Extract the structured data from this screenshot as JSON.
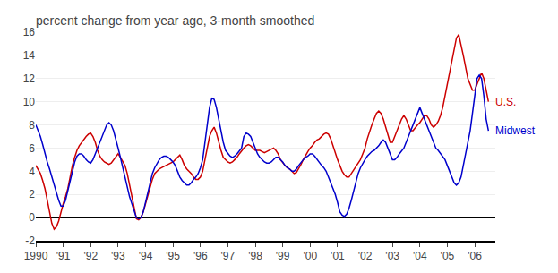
{
  "chart_data": {
    "type": "line",
    "title": "percent change from year ago, 3-month smoothed",
    "x": [
      1990.0,
      1990.083,
      1990.167,
      1990.25,
      1990.333,
      1990.417,
      1990.5,
      1990.583,
      1990.667,
      1990.75,
      1990.833,
      1990.917,
      1991.0,
      1991.083,
      1991.167,
      1991.25,
      1991.333,
      1991.417,
      1991.5,
      1991.583,
      1991.667,
      1991.75,
      1991.833,
      1991.917,
      1992.0,
      1992.083,
      1992.167,
      1992.25,
      1992.333,
      1992.417,
      1992.5,
      1992.583,
      1992.667,
      1992.75,
      1992.833,
      1992.917,
      1993.0,
      1993.083,
      1993.167,
      1993.25,
      1993.333,
      1993.417,
      1993.5,
      1993.583,
      1993.667,
      1993.75,
      1993.833,
      1993.917,
      1994.0,
      1994.083,
      1994.167,
      1994.25,
      1994.333,
      1994.417,
      1994.5,
      1994.583,
      1994.667,
      1994.75,
      1994.833,
      1994.917,
      1995.0,
      1995.083,
      1995.167,
      1995.25,
      1995.333,
      1995.417,
      1995.5,
      1995.583,
      1995.667,
      1995.75,
      1995.833,
      1995.917,
      1996.0,
      1996.083,
      1996.167,
      1996.25,
      1996.333,
      1996.417,
      1996.5,
      1996.583,
      1996.667,
      1996.75,
      1996.833,
      1996.917,
      1997.0,
      1997.083,
      1997.167,
      1997.25,
      1997.333,
      1997.417,
      1997.5,
      1997.583,
      1997.667,
      1997.75,
      1997.833,
      1997.917,
      1998.0,
      1998.083,
      1998.167,
      1998.25,
      1998.333,
      1998.417,
      1998.5,
      1998.583,
      1998.667,
      1998.75,
      1998.833,
      1998.917,
      1999.0,
      1999.083,
      1999.167,
      1999.25,
      1999.333,
      1999.417,
      1999.5,
      1999.583,
      1999.667,
      1999.75,
      1999.833,
      1999.917,
      2000.0,
      2000.083,
      2000.167,
      2000.25,
      2000.333,
      2000.417,
      2000.5,
      2000.583,
      2000.667,
      2000.75,
      2000.833,
      2000.917,
      2001.0,
      2001.083,
      2001.167,
      2001.25,
      2001.333,
      2001.417,
      2001.5,
      2001.583,
      2001.667,
      2001.75,
      2001.833,
      2001.917,
      2002.0,
      2002.083,
      2002.167,
      2002.25,
      2002.333,
      2002.417,
      2002.5,
      2002.583,
      2002.667,
      2002.75,
      2002.833,
      2002.917,
      2003.0,
      2003.083,
      2003.167,
      2003.25,
      2003.333,
      2003.417,
      2003.5,
      2003.583,
      2003.667,
      2003.75,
      2003.833,
      2003.917,
      2004.0,
      2004.083,
      2004.167,
      2004.25,
      2004.333,
      2004.417,
      2004.5,
      2004.583,
      2004.667,
      2004.75,
      2004.833,
      2004.917,
      2005.0,
      2005.083,
      2005.167,
      2005.25,
      2005.333,
      2005.417,
      2005.5,
      2005.583,
      2005.667,
      2005.75,
      2005.833,
      2005.917,
      2006.0,
      2006.083,
      2006.167,
      2006.25,
      2006.333,
      2006.417,
      2006.5
    ],
    "series": [
      {
        "name": "U.S.",
        "color": "#cc0000",
        "values": [
          4.5,
          4.2,
          3.8,
          3.2,
          2.5,
          1.5,
          0.5,
          -0.5,
          -1.0,
          -0.8,
          -0.3,
          0.5,
          1.2,
          1.8,
          2.5,
          3.5,
          4.5,
          5.2,
          5.8,
          6.2,
          6.5,
          6.8,
          7.0,
          7.2,
          7.3,
          7.0,
          6.5,
          5.8,
          5.3,
          5.0,
          4.8,
          4.7,
          4.6,
          4.7,
          5.0,
          5.3,
          5.5,
          5.2,
          4.8,
          4.5,
          3.8,
          2.8,
          1.8,
          0.8,
          -0.1,
          -0.2,
          0.0,
          0.5,
          1.2,
          2.0,
          2.8,
          3.3,
          3.8,
          4.0,
          4.2,
          4.3,
          4.4,
          4.5,
          4.6,
          4.7,
          4.8,
          5.0,
          5.2,
          5.4,
          5.0,
          4.5,
          4.2,
          4.0,
          3.8,
          3.5,
          3.3,
          3.3,
          3.5,
          4.0,
          5.0,
          6.0,
          7.0,
          7.5,
          7.8,
          7.3,
          6.5,
          5.8,
          5.2,
          5.0,
          4.8,
          4.7,
          4.8,
          5.0,
          5.2,
          5.5,
          5.8,
          6.0,
          6.2,
          6.3,
          6.2,
          6.0,
          5.8,
          5.8,
          5.8,
          5.7,
          5.6,
          5.7,
          5.8,
          5.9,
          6.0,
          5.8,
          5.5,
          5.0,
          4.7,
          4.5,
          4.3,
          4.2,
          4.0,
          3.8,
          3.9,
          4.2,
          4.6,
          5.0,
          5.4,
          5.7,
          6.0,
          6.2,
          6.5,
          6.7,
          6.8,
          7.0,
          7.2,
          7.3,
          7.2,
          6.8,
          6.2,
          5.5,
          5.0,
          4.5,
          4.0,
          3.7,
          3.5,
          3.5,
          3.8,
          4.0,
          4.3,
          4.7,
          5.0,
          5.5,
          6.0,
          6.8,
          7.5,
          8.0,
          8.5,
          9.0,
          9.2,
          9.0,
          8.5,
          7.8,
          7.0,
          6.5,
          6.5,
          7.0,
          7.5,
          8.0,
          8.5,
          8.8,
          8.5,
          8.0,
          7.5,
          7.5,
          7.8,
          8.0,
          8.2,
          8.5,
          8.8,
          8.8,
          8.5,
          8.0,
          7.8,
          8.0,
          8.3,
          8.8,
          9.5,
          10.5,
          11.5,
          12.5,
          13.5,
          14.5,
          15.5,
          15.8,
          15.0,
          14.0,
          13.0,
          12.0,
          11.5,
          11.0,
          11.0,
          11.5,
          12.0,
          12.5,
          12.0,
          11.0,
          10.0
        ]
      },
      {
        "name": "Midwest",
        "color": "#0000cc",
        "values": [
          8.0,
          7.5,
          7.0,
          6.3,
          5.5,
          4.8,
          4.2,
          3.5,
          2.8,
          2.2,
          1.5,
          1.0,
          1.0,
          1.5,
          2.3,
          3.2,
          4.0,
          4.8,
          5.3,
          5.5,
          5.5,
          5.3,
          5.0,
          4.8,
          4.7,
          5.0,
          5.5,
          6.0,
          6.5,
          7.0,
          7.5,
          8.0,
          8.2,
          8.0,
          7.5,
          6.8,
          6.0,
          5.2,
          4.3,
          3.5,
          2.5,
          1.8,
          1.2,
          0.5,
          0.0,
          -0.1,
          0.0,
          0.5,
          1.3,
          2.2,
          3.0,
          3.8,
          4.3,
          4.7,
          5.0,
          5.2,
          5.3,
          5.3,
          5.2,
          5.0,
          4.8,
          4.5,
          4.0,
          3.5,
          3.2,
          3.0,
          2.8,
          2.8,
          3.0,
          3.3,
          3.5,
          3.8,
          4.3,
          5.0,
          6.5,
          8.0,
          9.5,
          10.3,
          10.2,
          9.5,
          8.5,
          7.5,
          6.5,
          5.8,
          5.5,
          5.3,
          5.2,
          5.3,
          5.5,
          5.8,
          6.0,
          7.0,
          7.3,
          7.2,
          7.0,
          6.5,
          6.0,
          5.5,
          5.2,
          5.0,
          4.8,
          4.7,
          4.7,
          4.8,
          5.0,
          5.2,
          5.2,
          5.0,
          4.8,
          4.5,
          4.3,
          4.2,
          4.0,
          4.0,
          4.2,
          4.5,
          4.8,
          5.0,
          5.2,
          5.3,
          5.5,
          5.5,
          5.3,
          5.0,
          4.7,
          4.5,
          4.3,
          4.0,
          3.5,
          3.0,
          2.5,
          2.0,
          1.3,
          0.5,
          0.2,
          0.1,
          0.3,
          0.8,
          1.5,
          2.3,
          3.0,
          3.8,
          4.3,
          4.7,
          5.0,
          5.3,
          5.5,
          5.7,
          5.8,
          6.0,
          6.2,
          6.5,
          6.7,
          6.5,
          6.0,
          5.5,
          5.0,
          5.0,
          5.2,
          5.5,
          5.8,
          6.0,
          6.5,
          7.0,
          7.5,
          8.0,
          8.5,
          9.0,
          9.5,
          9.0,
          8.5,
          8.0,
          7.5,
          7.0,
          6.5,
          6.0,
          5.8,
          5.5,
          5.2,
          5.0,
          4.5,
          4.0,
          3.5,
          3.0,
          2.8,
          3.0,
          3.5,
          4.5,
          5.5,
          6.5,
          7.5,
          9.0,
          10.5,
          12.0,
          12.3,
          12.0,
          10.5,
          8.5,
          7.5
        ]
      }
    ],
    "xlim": [
      1990.0,
      2006.75
    ],
    "xticks": [
      1990,
      {
        "value": 1991,
        "label": "'91"
      },
      {
        "value": 1992,
        "label": "'92"
      },
      {
        "value": 1993,
        "label": "'93"
      },
      {
        "value": 1994,
        "label": "'94"
      },
      {
        "value": 1995,
        "label": "'95"
      },
      {
        "value": 1996,
        "label": "'96"
      },
      {
        "value": 1997,
        "label": "'97"
      },
      {
        "value": 1998,
        "label": "'98"
      },
      {
        "value": 1999,
        "label": "'99"
      },
      {
        "value": 2000,
        "label": "'00"
      },
      {
        "value": 2001,
        "label": "'01"
      },
      {
        "value": 2002,
        "label": "'02"
      },
      {
        "value": 2003,
        "label": "'03"
      },
      {
        "value": 2004,
        "label": "'04"
      },
      {
        "value": 2005,
        "label": "'05"
      },
      {
        "value": 2006,
        "label": "'06"
      }
    ],
    "ylim": [
      -2,
      16
    ],
    "yticks": [
      -2,
      0,
      2,
      4,
      6,
      8,
      10,
      12,
      14,
      16
    ],
    "grid": true
  }
}
